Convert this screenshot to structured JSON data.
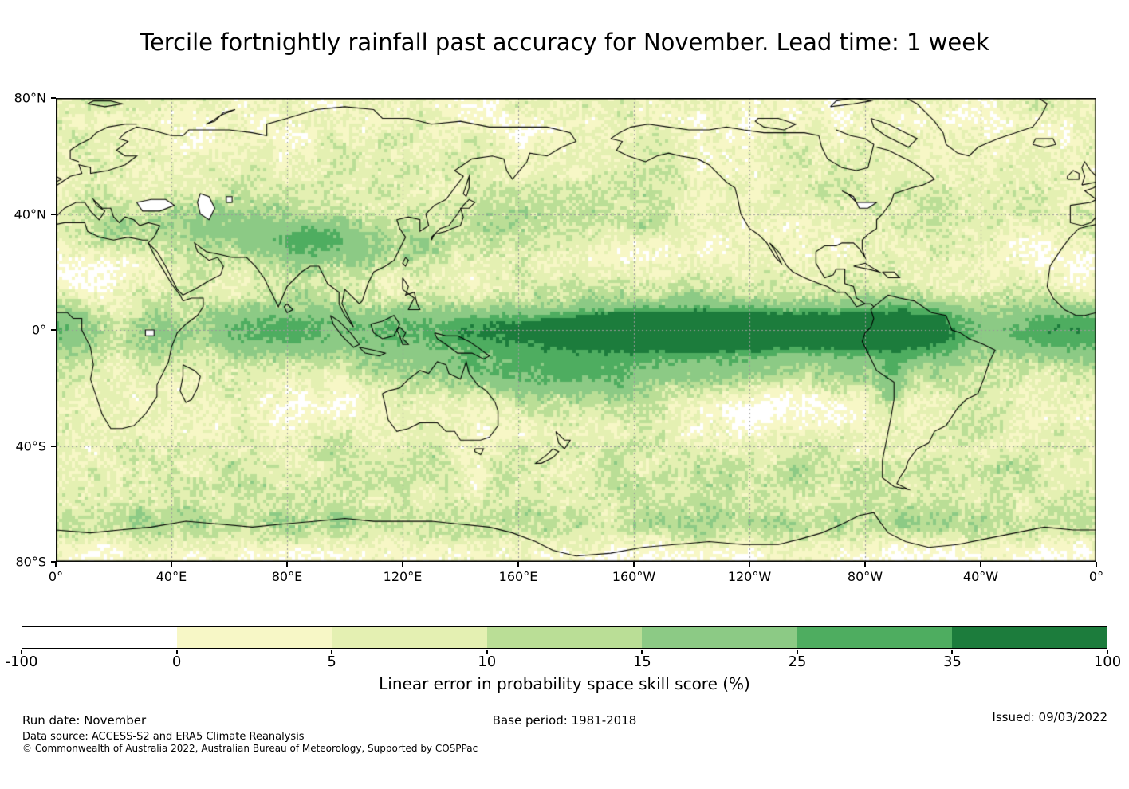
{
  "chart_data": {
    "type": "heatmap",
    "title": "Tercile fortnightly rainfall past accuracy for November. Lead time: 1 week",
    "xlabel": "",
    "ylabel": "",
    "x_ticks": [
      "0°",
      "40°E",
      "80°E",
      "120°E",
      "160°E",
      "160°W",
      "120°W",
      "80°W",
      "40°W",
      "0°"
    ],
    "y_ticks": [
      "80°N",
      "40°N",
      "0°",
      "40°S",
      "80°S"
    ],
    "lat_range": [
      -80,
      80
    ],
    "lon_range_deg_east": [
      0,
      360
    ],
    "grid": true,
    "projection": "equirectangular world map centered on 180°",
    "colorbar": {
      "label": "Linear error in probability space skill score (%)",
      "tick_labels": [
        "-100",
        "0",
        "5",
        "10",
        "15",
        "25",
        "35",
        "100"
      ],
      "tick_values": [
        -100,
        0,
        5,
        10,
        15,
        25,
        35,
        100
      ],
      "colors": [
        "#ffffff",
        "#f7f7c6",
        "#e4f0b2",
        "#bade96",
        "#8cca85",
        "#4ead60",
        "#1c7c3c"
      ],
      "position": "bottom"
    }
  },
  "footer": {
    "run_date": "Run date: November",
    "base_period": "Base period: 1981-2018",
    "issued": "Issued: 09/03/2022",
    "data_source": "Data source: ACCESS-S2 and ERA5 Climate Reanalysis",
    "copyright": "© Commonwealth of Australia 2022, Australian Bureau of Meteorology, Supported by COSPPac"
  }
}
